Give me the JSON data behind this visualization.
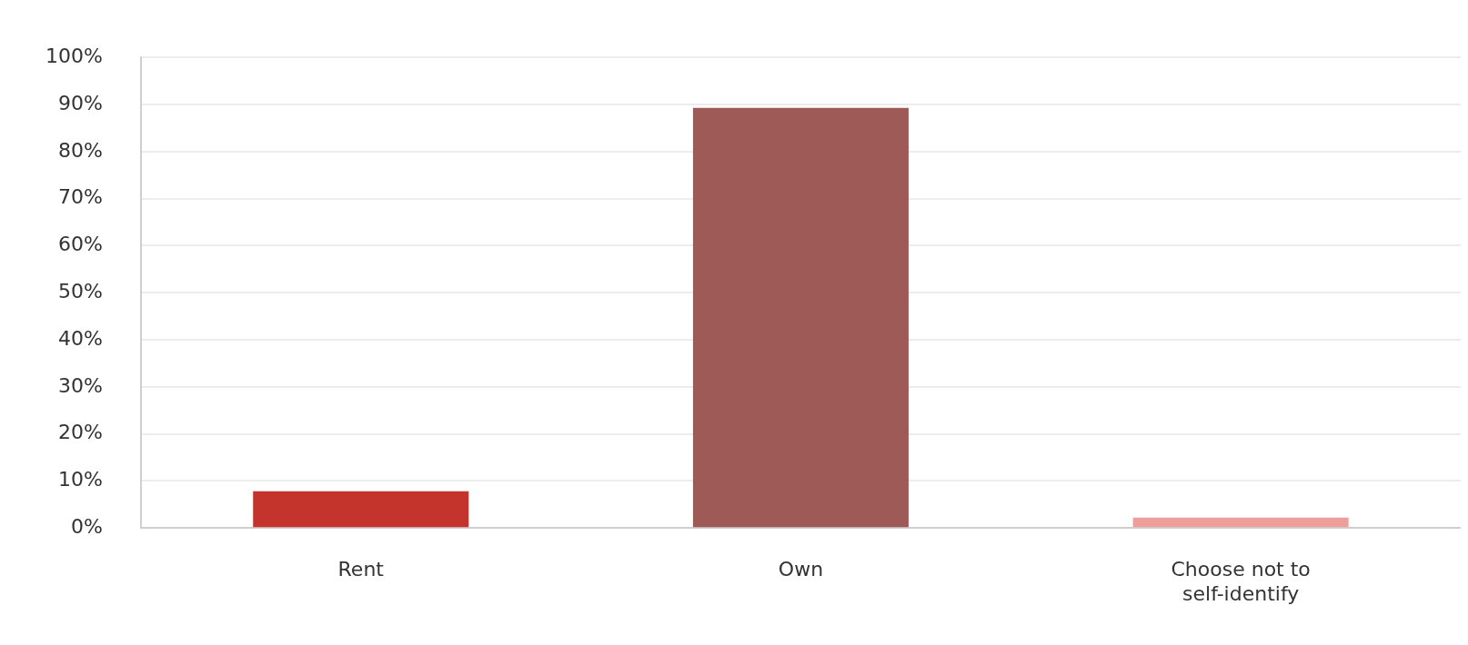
{
  "chart_data": {
    "type": "bar",
    "categories": [
      "Rent",
      "Own",
      "Choose not to self-identify"
    ],
    "values": [
      7.8,
      89.3,
      2.2
    ],
    "colors": [
      "#c4342c",
      "#9e5a57",
      "#ee9e9a"
    ],
    "ylim": [
      0,
      100
    ],
    "yticks": [
      {
        "value": 0,
        "label": "0%"
      },
      {
        "value": 10,
        "label": "10%"
      },
      {
        "value": 20,
        "label": "20%"
      },
      {
        "value": 30,
        "label": "30%"
      },
      {
        "value": 40,
        "label": "40%"
      },
      {
        "value": 50,
        "label": "50%"
      },
      {
        "value": 60,
        "label": "60%"
      },
      {
        "value": 70,
        "label": "70%"
      },
      {
        "value": 80,
        "label": "80%"
      },
      {
        "value": 90,
        "label": "90%"
      },
      {
        "value": 100,
        "label": "100%"
      }
    ],
    "grid": "y",
    "legend": false
  }
}
